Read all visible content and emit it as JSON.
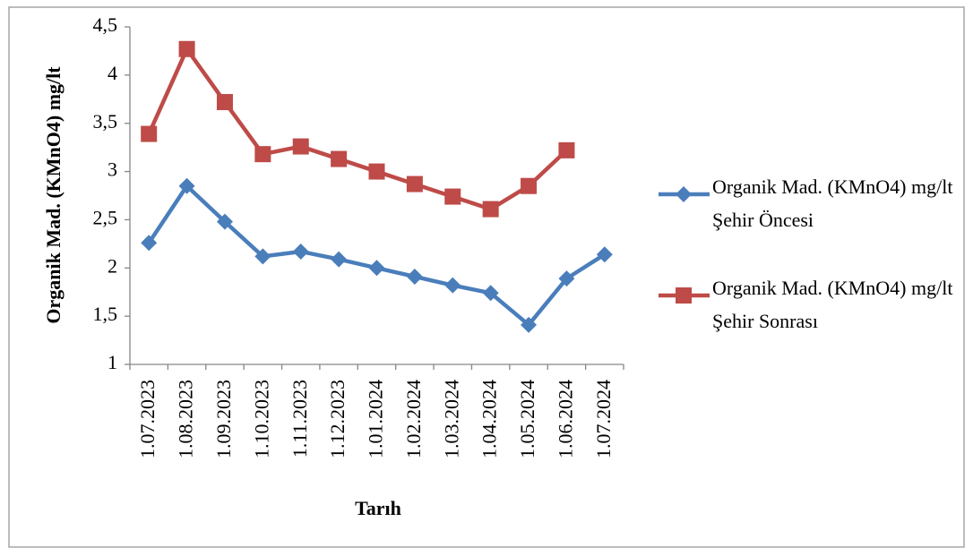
{
  "chart_data": {
    "type": "line",
    "y_label": "Organik Mad. (KMnO4) mg/lt",
    "x_label": "Tarıh",
    "categories": [
      "1.07.2023",
      "1.08.2023",
      "1.09.2023",
      "1.10.2023",
      "1.11.2023",
      "1.12.2023",
      "1.01.2024",
      "1.02.2024",
      "1.03.2024",
      "1.04.2024",
      "1.05.2024",
      "1.06.2024",
      "1.07.2024"
    ],
    "series": [
      {
        "name": "Organik Mad. (KMnO4) mg/lt Şehir Öncesi",
        "color": "#4a7ebb",
        "marker": "diamond",
        "values": [
          2.26,
          2.85,
          2.48,
          2.12,
          2.17,
          2.09,
          2.0,
          1.91,
          1.82,
          1.74,
          1.41,
          1.89,
          2.14
        ]
      },
      {
        "name": "Organik Mad. (KMnO4) mg/lt Şehir Sonrası",
        "color": "#be4b48",
        "marker": "square",
        "values": [
          3.39,
          4.27,
          3.72,
          3.18,
          3.26,
          3.13,
          3.0,
          2.87,
          2.74,
          2.61,
          2.85,
          3.22,
          null
        ]
      }
    ],
    "ylim": [
      1,
      4.5
    ],
    "yticks": [
      1,
      {
        "value": 1.5,
        "label": "1,5"
      },
      2,
      {
        "value": 2.5,
        "label": "2,5"
      },
      3,
      {
        "value": 3.5,
        "label": "3,5"
      },
      4,
      {
        "value": 4.5,
        "label": "4,5"
      }
    ],
    "grid": false,
    "legend": "right"
  }
}
